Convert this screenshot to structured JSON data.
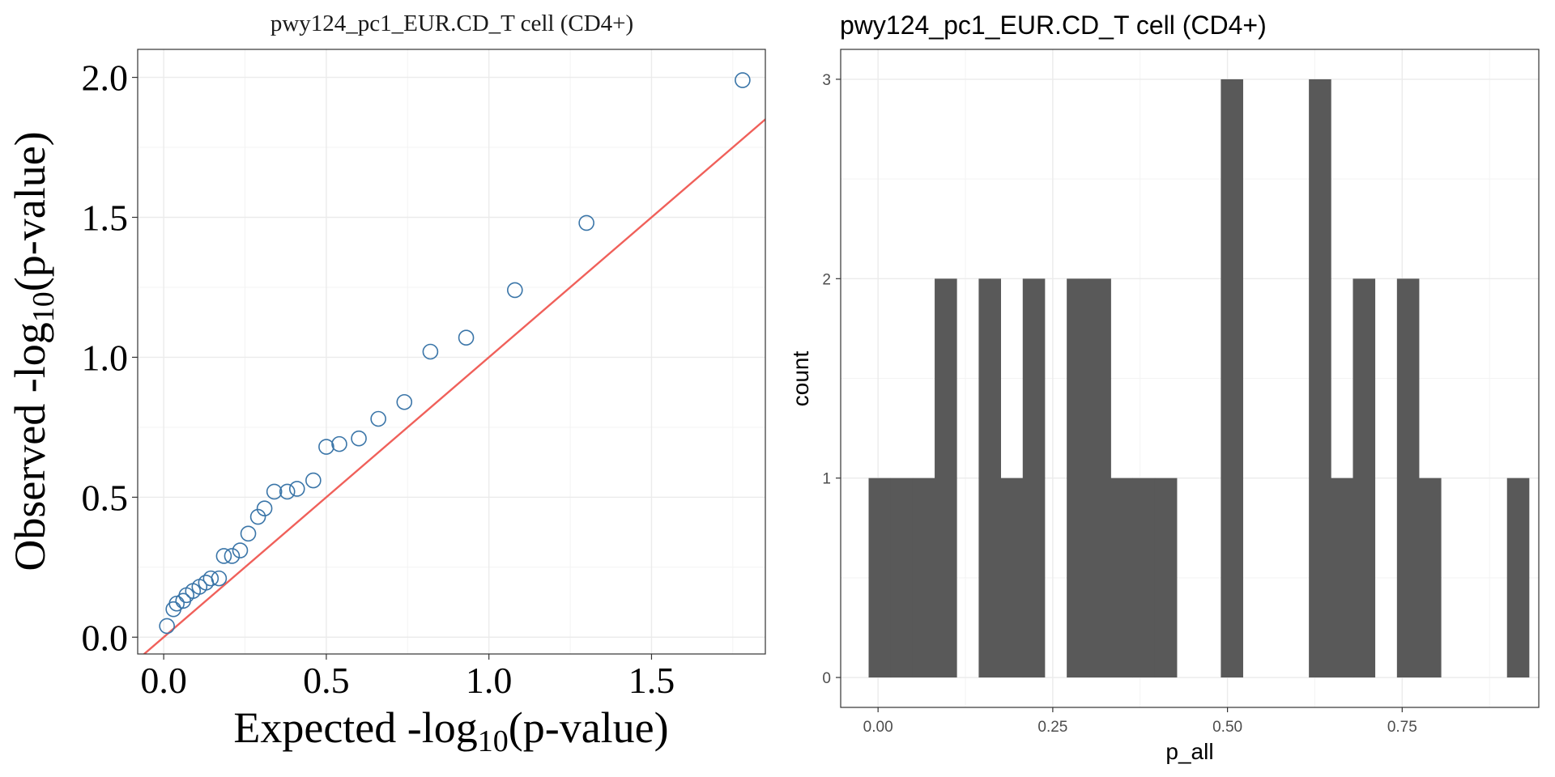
{
  "charts": [
    {
      "panel": "qq",
      "chart_data": {
        "type": "scatter",
        "title": "pwy124_pc1_EUR.CD_T cell (CD4+)",
        "xlabel_main": "Expected -log",
        "xlabel_sub": "10",
        "xlabel_tail": "(p-value)",
        "ylabel_main": "Observed -log",
        "ylabel_sub": "10",
        "ylabel_tail": "(p-value)",
        "xlim": [
          -0.08,
          1.85
        ],
        "ylim": [
          -0.06,
          2.1
        ],
        "x_ticks": [
          0.0,
          0.5,
          1.0,
          1.5
        ],
        "x_tick_labels": [
          "0.0",
          "0.5",
          "1.0",
          "1.5"
        ],
        "y_ticks": [
          0.0,
          0.5,
          1.0,
          1.5,
          2.0
        ],
        "y_tick_labels": [
          "0.0",
          "0.5",
          "1.0",
          "1.5",
          "2.0"
        ],
        "grid": true,
        "point_color": "#3a75a8",
        "line_color": "#f0605a",
        "reference_line": {
          "slope": 1,
          "intercept": 0
        },
        "points": [
          {
            "x": 0.01,
            "y": 0.04
          },
          {
            "x": 0.03,
            "y": 0.1
          },
          {
            "x": 0.04,
            "y": 0.12
          },
          {
            "x": 0.06,
            "y": 0.13
          },
          {
            "x": 0.07,
            "y": 0.15
          },
          {
            "x": 0.09,
            "y": 0.165
          },
          {
            "x": 0.11,
            "y": 0.18
          },
          {
            "x": 0.13,
            "y": 0.195
          },
          {
            "x": 0.145,
            "y": 0.21
          },
          {
            "x": 0.17,
            "y": 0.21
          },
          {
            "x": 0.185,
            "y": 0.29
          },
          {
            "x": 0.21,
            "y": 0.29
          },
          {
            "x": 0.235,
            "y": 0.31
          },
          {
            "x": 0.26,
            "y": 0.37
          },
          {
            "x": 0.29,
            "y": 0.43
          },
          {
            "x": 0.31,
            "y": 0.46
          },
          {
            "x": 0.34,
            "y": 0.52
          },
          {
            "x": 0.38,
            "y": 0.52
          },
          {
            "x": 0.41,
            "y": 0.53
          },
          {
            "x": 0.46,
            "y": 0.56
          },
          {
            "x": 0.5,
            "y": 0.68
          },
          {
            "x": 0.54,
            "y": 0.69
          },
          {
            "x": 0.6,
            "y": 0.71
          },
          {
            "x": 0.66,
            "y": 0.78
          },
          {
            "x": 0.74,
            "y": 0.84
          },
          {
            "x": 0.82,
            "y": 1.02
          },
          {
            "x": 0.93,
            "y": 1.07
          },
          {
            "x": 1.08,
            "y": 1.24
          },
          {
            "x": 1.3,
            "y": 1.48
          },
          {
            "x": 1.78,
            "y": 1.99
          }
        ]
      }
    },
    {
      "panel": "hist",
      "chart_data": {
        "type": "bar",
        "title": "pwy124_pc1_EUR.CD_T cell (CD4+)",
        "xlabel": "p_all",
        "ylabel": "count",
        "xlim": [
          -0.0535,
          0.9455
        ],
        "ylim": [
          -0.15,
          3.15
        ],
        "x_ticks": [
          0.0,
          0.25,
          0.5,
          0.75
        ],
        "x_tick_labels": [
          "0.00",
          "0.25",
          "0.50",
          "0.75"
        ],
        "y_ticks": [
          0,
          1,
          2,
          3
        ],
        "y_tick_labels": [
          "0",
          "1",
          "2",
          "3"
        ],
        "grid": true,
        "bar_color": "#595959",
        "bin_width": 0.0315,
        "bins": [
          {
            "x0": -0.0135,
            "count": 1
          },
          {
            "x0": 0.018,
            "count": 1
          },
          {
            "x0": 0.0495,
            "count": 1
          },
          {
            "x0": 0.081,
            "count": 2
          },
          {
            "x0": 0.1125,
            "count": 0
          },
          {
            "x0": 0.144,
            "count": 2
          },
          {
            "x0": 0.1755,
            "count": 1
          },
          {
            "x0": 0.207,
            "count": 2
          },
          {
            "x0": 0.2385,
            "count": 0
          },
          {
            "x0": 0.27,
            "count": 2
          },
          {
            "x0": 0.3015,
            "count": 2
          },
          {
            "x0": 0.333,
            "count": 1
          },
          {
            "x0": 0.3645,
            "count": 1
          },
          {
            "x0": 0.396,
            "count": 1
          },
          {
            "x0": 0.4275,
            "count": 0
          },
          {
            "x0": 0.459,
            "count": 0
          },
          {
            "x0": 0.4905,
            "count": 3
          },
          {
            "x0": 0.522,
            "count": 0
          },
          {
            "x0": 0.5535,
            "count": 0
          },
          {
            "x0": 0.585,
            "count": 0
          },
          {
            "x0": 0.6165,
            "count": 3
          },
          {
            "x0": 0.648,
            "count": 1
          },
          {
            "x0": 0.6795,
            "count": 2
          },
          {
            "x0": 0.711,
            "count": 0
          },
          {
            "x0": 0.7425,
            "count": 2
          },
          {
            "x0": 0.774,
            "count": 1
          },
          {
            "x0": 0.8055,
            "count": 0
          },
          {
            "x0": 0.837,
            "count": 0
          },
          {
            "x0": 0.8685,
            "count": 0
          },
          {
            "x0": 0.9,
            "count": 1
          }
        ]
      }
    }
  ]
}
